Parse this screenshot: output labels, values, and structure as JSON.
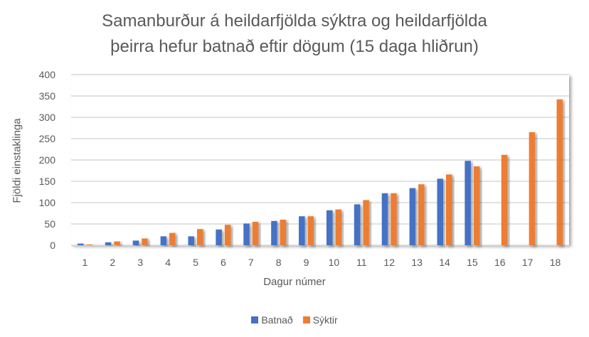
{
  "chart_data": {
    "type": "bar",
    "title": "Samanburður á heildarfjölda sýktra og heildarfjölda þeirra hefur batnað eftir dögum (15 daga hliðrun)",
    "title_lines": [
      "Samanburður á heildarfjölda sýktra og heildarfjölda",
      "þeirra hefur batnað eftir dögum (15 daga hliðrun)"
    ],
    "xlabel": "Dagur númer",
    "ylabel": "Fjöldi einstaklinga",
    "ylim": [
      0,
      400
    ],
    "yticks": [
      0,
      50,
      100,
      150,
      200,
      250,
      300,
      350,
      400
    ],
    "categories": [
      "1",
      "2",
      "3",
      "4",
      "5",
      "6",
      "7",
      "8",
      "9",
      "10",
      "11",
      "12",
      "13",
      "14",
      "15",
      "16",
      "17",
      "18"
    ],
    "series": [
      {
        "name": "Batnað",
        "color": "#4472C4",
        "values": [
          4,
          7,
          11,
          21,
          21,
          37,
          51,
          57,
          68,
          82,
          96,
          122,
          134,
          156,
          198,
          null,
          null,
          null
        ]
      },
      {
        "name": "Sýktir",
        "color": "#ED7D31",
        "values": [
          2,
          9,
          16,
          29,
          38,
          48,
          55,
          60,
          68,
          84,
          106,
          122,
          143,
          166,
          185,
          212,
          265,
          342
        ]
      }
    ],
    "grid": true,
    "legend_position": "bottom"
  }
}
